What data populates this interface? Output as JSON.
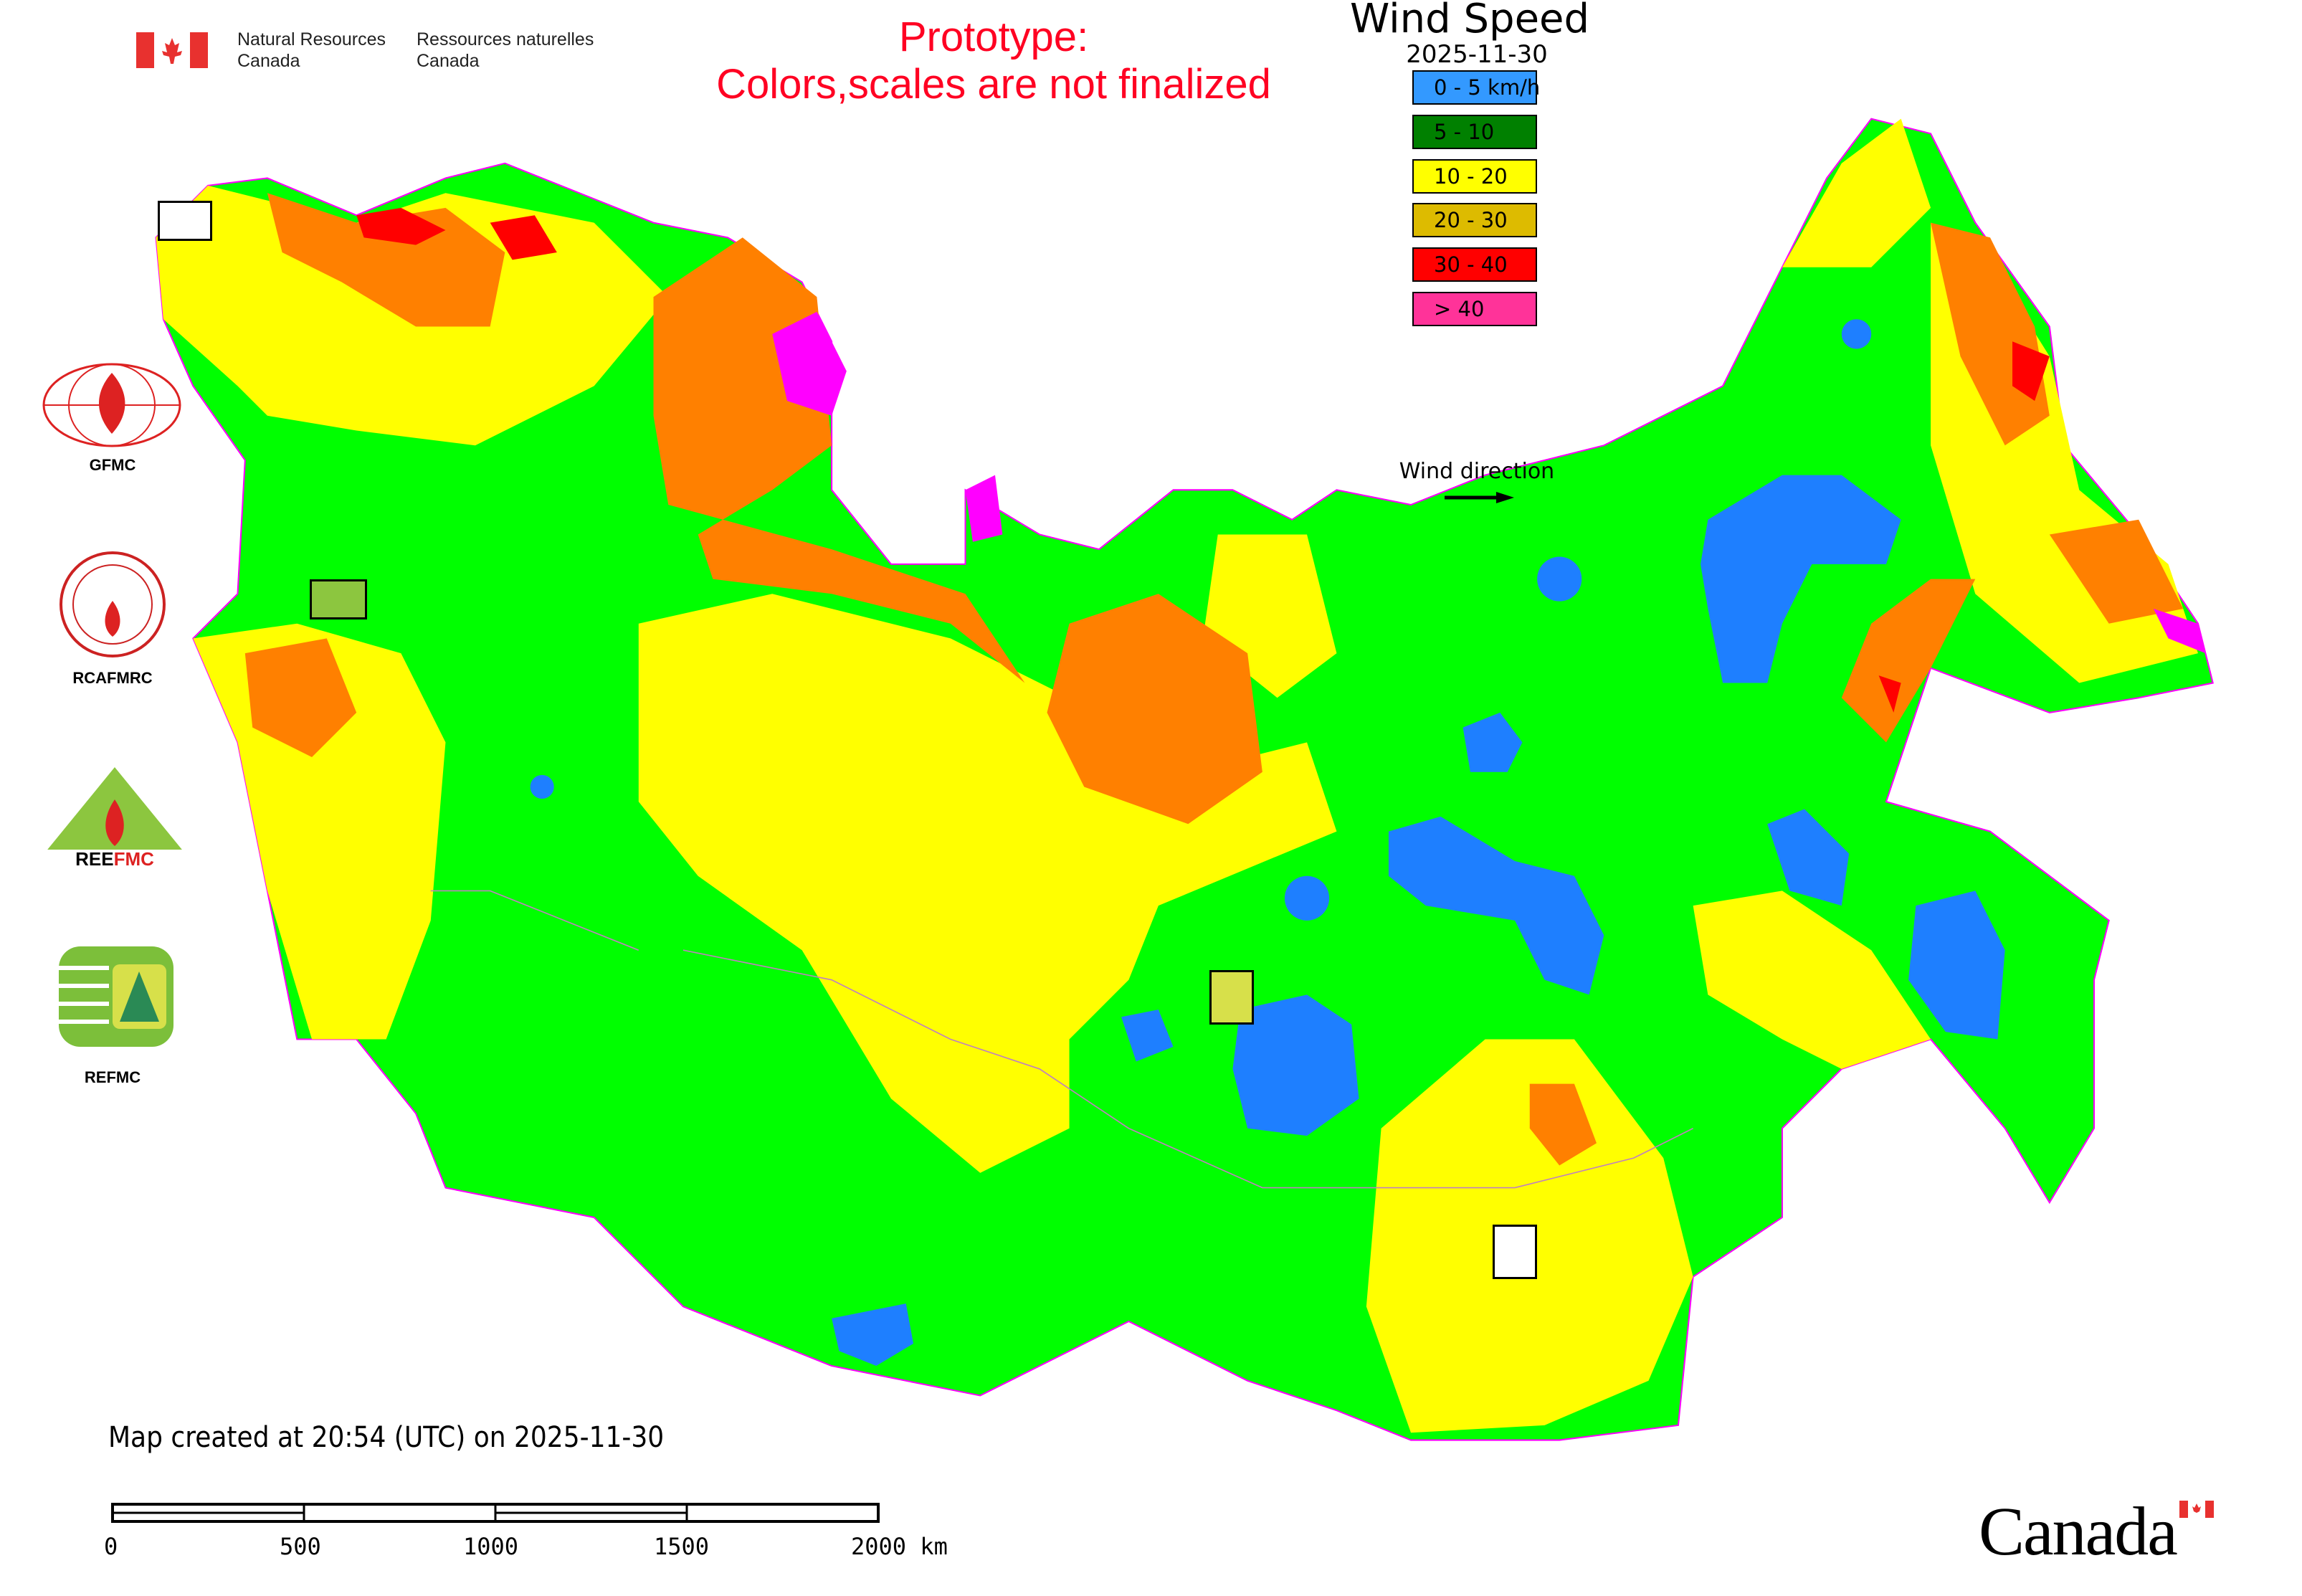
{
  "header": {
    "nrcan_en_line1": "Natural Resources",
    "nrcan_en_line2": "Canada",
    "nrcan_fr_line1": "Ressources naturelles",
    "nrcan_fr_line2": "Canada",
    "prototype_line1": "Prototype:",
    "prototype_line2": "Colors,scales are not finalized"
  },
  "legend": {
    "title": "Wind Speed",
    "date": "2025-11-30",
    "items": [
      {
        "label": "0 - 5 km/h",
        "color": "#3399ff"
      },
      {
        "label": "5 - 10",
        "color": "#008000"
      },
      {
        "label": "10 - 20",
        "color": "#ffff00"
      },
      {
        "label": "20 - 30",
        "color": "#ddbb00"
      },
      {
        "label": "30 - 40",
        "color": "#ff0000"
      },
      {
        "label": "> 40",
        "color": "#ff3399"
      }
    ],
    "wind_direction_label": "Wind direction"
  },
  "map_colors": {
    "calm": "#1e7fff",
    "light": "#00ff00",
    "moderate": "#ffff00",
    "strong": "#ff8000",
    "very_strong": "#ff0000",
    "extreme": "#ff00ff",
    "border": "#ff00ff"
  },
  "logos": {
    "gfmc": "GFMC",
    "rcafmrc": "RCAFMRC",
    "reefmc": "REEFMC",
    "refmc": "REFMC"
  },
  "footer": {
    "created": "Map created at 20:54 (UTC) on 2025-11-30",
    "scale_labels": [
      "0",
      "500",
      "1000",
      "1500",
      "2000 km"
    ],
    "canada_wordmark": "Canada"
  }
}
